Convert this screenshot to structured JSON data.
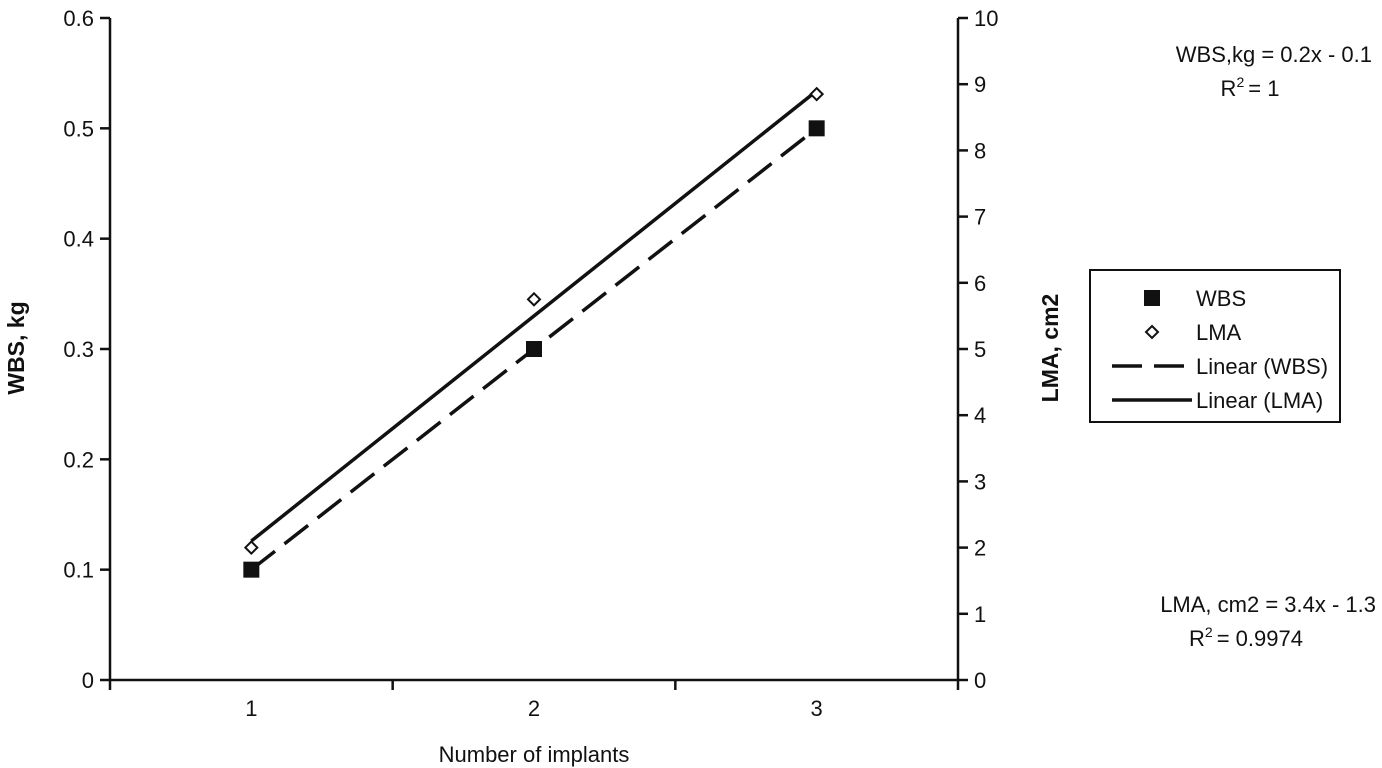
{
  "chart_data": {
    "type": "scatter",
    "title": "",
    "x": [
      1,
      2,
      3
    ],
    "xlabel": "Number of implants",
    "xlim": [
      0.5,
      3.5
    ],
    "x_ticks": [
      "1",
      "2",
      "3"
    ],
    "ylabel": "WBS, kg",
    "ylim": [
      0,
      0.6
    ],
    "y_ticks": [
      "0",
      "0.1",
      "0.2",
      "0.3",
      "0.4",
      "0.5",
      "0.6"
    ],
    "y2label": "LMA, cm2",
    "y2lim": [
      0,
      10
    ],
    "y2_ticks": [
      "0",
      "1",
      "2",
      "3",
      "4",
      "5",
      "6",
      "7",
      "8",
      "9",
      "10"
    ],
    "grid": false,
    "legend_position": "right",
    "series": [
      {
        "name": "WBS",
        "axis": "left",
        "marker": "filled-square",
        "color": "#111111",
        "values": [
          0.1,
          0.3,
          0.5
        ]
      },
      {
        "name": "LMA",
        "axis": "right",
        "marker": "open-diamond",
        "color": "#111111",
        "values": [
          2.0,
          5.75,
          8.85
        ]
      }
    ],
    "trendlines": [
      {
        "name": "Linear (WBS)",
        "series": "WBS",
        "style": "dashed",
        "slope": 0.2,
        "intercept": -0.1,
        "equation": "WBS,kg = 0.2x - 0.1",
        "r2": "= 1"
      },
      {
        "name": "Linear (LMA)",
        "series": "LMA",
        "style": "solid",
        "slope": 3.4,
        "intercept": -1.3,
        "equation": "LMA, cm2 = 3.4x - 1.3",
        "r2": "= 0.9974"
      }
    ],
    "r2_prefix": "R",
    "r2_sup": "2"
  }
}
